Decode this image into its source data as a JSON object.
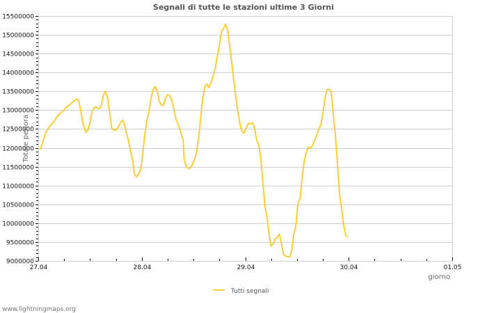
{
  "chart_data": {
    "type": "line",
    "title": "Segnali di tutte le stazioni ultime 3 Giorni",
    "xlabel": "giorno",
    "ylabel": "Totale periora",
    "xlim": [
      "27.04",
      "01.05"
    ],
    "ylim": [
      9000000,
      15500000
    ],
    "grid": true,
    "legend_position": "bottom",
    "x_tick_labels": [
      "27.04",
      "28.04",
      "29.04",
      "30.04",
      "01.05"
    ],
    "y_tick_labels": [
      "9000000",
      "9500000",
      "10000000",
      "10500000",
      "11000000",
      "11500000",
      "12000000",
      "12500000",
      "13000000",
      "13500000",
      "14000000",
      "14500000",
      "15000000",
      "15500000"
    ],
    "series": [
      {
        "name": "Tutti segnali",
        "color": "#ffcc33",
        "x_days": [
          0.02,
          0.05,
          0.07,
          0.11,
          0.14,
          0.18,
          0.21,
          0.25,
          0.27,
          0.3,
          0.34,
          0.37,
          0.39,
          0.41,
          0.43,
          0.46,
          0.48,
          0.5,
          0.52,
          0.55,
          0.57,
          0.59,
          0.61,
          0.63,
          0.65,
          0.67,
          0.69,
          0.71,
          0.73,
          0.75,
          0.78,
          0.8,
          0.82,
          0.84,
          0.87,
          0.89,
          0.91,
          0.93,
          0.95,
          0.97,
          0.99,
          1.01,
          1.03,
          1.05,
          1.07,
          1.09,
          1.11,
          1.13,
          1.15,
          1.17,
          1.19,
          1.21,
          1.23,
          1.25,
          1.27,
          1.29,
          1.31,
          1.33,
          1.35,
          1.37,
          1.4,
          1.41,
          1.43,
          1.45,
          1.47,
          1.49,
          1.51,
          1.53,
          1.55,
          1.57,
          1.59,
          1.61,
          1.63,
          1.65,
          1.67,
          1.69,
          1.71,
          1.73,
          1.75,
          1.77,
          1.79,
          1.81,
          1.83,
          1.85,
          1.87,
          1.89,
          1.91,
          1.93,
          1.95,
          1.97,
          1.99,
          2.01,
          2.03,
          2.05,
          2.07,
          2.09,
          2.11,
          2.13,
          2.15,
          2.17,
          2.19,
          2.21,
          2.23,
          2.25,
          2.27,
          2.29,
          2.31,
          2.33,
          2.35,
          2.37,
          2.39,
          2.41,
          2.43,
          2.45,
          2.47,
          2.49,
          2.51,
          2.53,
          2.55,
          2.57,
          2.59,
          2.61,
          2.63,
          2.65,
          2.67,
          2.69,
          2.71,
          2.73,
          2.75,
          2.77,
          2.79,
          2.81,
          2.83,
          2.85,
          2.87,
          2.89,
          2.91,
          2.93,
          2.95,
          2.97,
          2.99,
          3.01,
          3.03
        ],
        "values": [
          11950000,
          12210000,
          12390000,
          12580000,
          12650000,
          12820000,
          12910000,
          13000000,
          13080000,
          13130000,
          13230000,
          13300000,
          13260000,
          13000000,
          12670000,
          12410000,
          12470000,
          12670000,
          12980000,
          13090000,
          13060000,
          13040000,
          13130000,
          13410000,
          13500000,
          13320000,
          12950000,
          12520000,
          12470000,
          12470000,
          12580000,
          12690000,
          12730000,
          12540000,
          12210000,
          11930000,
          11690000,
          11290000,
          11230000,
          11300000,
          11430000,
          11840000,
          12360000,
          12730000,
          12980000,
          13320000,
          13540000,
          13630000,
          13500000,
          13230000,
          13130000,
          13130000,
          13320000,
          13410000,
          13390000,
          13260000,
          13040000,
          12760000,
          12630000,
          12480000,
          12210000,
          11690000,
          11510000,
          11450000,
          11470000,
          11560000,
          11690000,
          11880000,
          12300000,
          12800000,
          13320000,
          13630000,
          13690000,
          13600000,
          13740000,
          13910000,
          14110000,
          14430000,
          14710000,
          15080000,
          15170000,
          15280000,
          15130000,
          14710000,
          14250000,
          13780000,
          13320000,
          12950000,
          12620000,
          12430000,
          12390000,
          12540000,
          12650000,
          12630000,
          12670000,
          12520000,
          12210000,
          12080000,
          11750000,
          11100000,
          10460000,
          10180000,
          9720000,
          9390000,
          9450000,
          9580000,
          9630000,
          9710000,
          9450000,
          9170000,
          9130000,
          9110000,
          9100000,
          9300000,
          9720000,
          9950000,
          10550000,
          10640000,
          11190000,
          11650000,
          11880000,
          12020000,
          11990000,
          12060000,
          12190000,
          12320000,
          12490000,
          12600000,
          12930000,
          13300000,
          13540000,
          13560000,
          13490000,
          12930000,
          12370000,
          11630000,
          10800000,
          10430000,
          9970000,
          9690000,
          9630000
        ]
      }
    ]
  },
  "footer": {
    "source": "www.lightningmaps.org"
  }
}
